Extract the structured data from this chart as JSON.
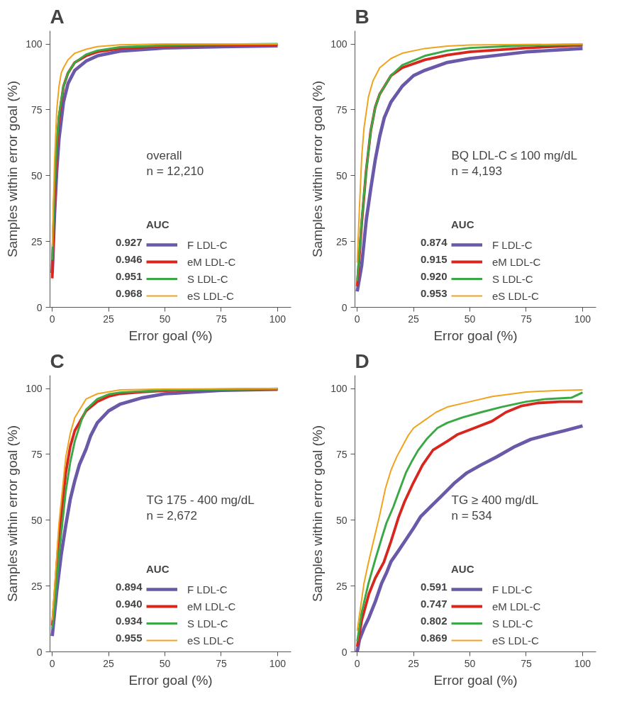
{
  "chart_data": [
    {
      "type": "line",
      "title": "A",
      "xlabel": "Error goal (%)",
      "ylabel": "Samples within error goal (%)",
      "xlim": [
        -1,
        106
      ],
      "ylim": [
        0,
        105
      ],
      "xticks": [
        0,
        25,
        50,
        75,
        100
      ],
      "yticks": [
        0,
        25,
        50,
        75,
        100
      ],
      "grid": false,
      "legend": "bottom right",
      "legend_title": "AUC",
      "annotations": [
        "overall",
        "n = 12,210",
        "0.927",
        "0.946",
        "0.951",
        "0.968"
      ],
      "series": [
        {
          "name": "F LDL-C",
          "color": "#6a58a8",
          "x": [
            0,
            1,
            2,
            3,
            5,
            7,
            10,
            15,
            20,
            30,
            50,
            75,
            100
          ],
          "values": [
            13,
            35,
            52,
            64,
            78,
            85,
            90,
            93.5,
            95.5,
            97.3,
            98.5,
            99,
            99.3
          ]
        },
        {
          "name": "eM LDL-C",
          "color": "#d7261e",
          "x": [
            0,
            1,
            2,
            3,
            5,
            7,
            10,
            15,
            20,
            30,
            50,
            75,
            100
          ],
          "values": [
            11,
            42,
            60,
            72,
            84,
            89,
            93,
            95.5,
            97,
            98.3,
            99.2,
            99.5,
            99.7
          ]
        },
        {
          "name": "S LDL-C",
          "color": "#3aa845",
          "x": [
            0,
            1,
            2,
            3,
            5,
            7,
            10,
            15,
            20,
            30,
            50,
            75,
            100
          ],
          "values": [
            18,
            45,
            62,
            73,
            84,
            89,
            93,
            96,
            97.5,
            98.8,
            99.5,
            99.8,
            100
          ]
        },
        {
          "name": "eS LDL-C",
          "color": "#f0a31c",
          "x": [
            0,
            1,
            2,
            3,
            4,
            5,
            7,
            10,
            15,
            20,
            30,
            50,
            100
          ],
          "values": [
            23,
            55,
            75,
            84,
            89,
            91,
            94,
            96.5,
            98,
            99,
            99.7,
            100,
            100
          ]
        }
      ]
    },
    {
      "type": "line",
      "title": "B",
      "xlabel": "Error goal (%)",
      "ylabel": "Samples within error goal (%)",
      "xlim": [
        -1,
        106
      ],
      "ylim": [
        0,
        105
      ],
      "xticks": [
        0,
        25,
        50,
        75,
        100
      ],
      "yticks": [
        0,
        25,
        50,
        75,
        100
      ],
      "grid": false,
      "legend": "bottom right",
      "legend_title": "AUC",
      "annotations": [
        "BQ LDL-C ≤ 100 mg/dL",
        "n = 4,193",
        "0.874",
        "0.915",
        "0.920",
        "0.953"
      ],
      "series": [
        {
          "name": "F LDL-C",
          "color": "#6a58a8",
          "x": [
            0,
            2,
            4,
            6,
            8,
            10,
            12,
            15,
            20,
            25,
            30,
            40,
            50,
            75,
            100
          ],
          "values": [
            6,
            16,
            33,
            45,
            56,
            65,
            72,
            78,
            84,
            88,
            90,
            93,
            94.5,
            97,
            98.3
          ]
        },
        {
          "name": "eM LDL-C",
          "color": "#d7261e",
          "x": [
            0,
            2,
            4,
            6,
            8,
            10,
            15,
            20,
            30,
            40,
            50,
            75,
            100
          ],
          "values": [
            8,
            32,
            52,
            67,
            76,
            81,
            88,
            91,
            94,
            95.8,
            97,
            98.5,
            99.5
          ]
        },
        {
          "name": "S LDL-C",
          "color": "#3aa845",
          "x": [
            0,
            2,
            4,
            6,
            8,
            10,
            15,
            20,
            30,
            40,
            50,
            75,
            100
          ],
          "values": [
            10,
            33,
            52,
            67,
            76,
            81,
            88,
            92,
            95.5,
            97.5,
            98.5,
            99.5,
            99.8
          ]
        },
        {
          "name": "eS LDL-C",
          "color": "#f0a31c",
          "x": [
            0,
            1,
            2,
            3,
            5,
            7,
            10,
            15,
            20,
            30,
            40,
            50,
            100
          ],
          "values": [
            17,
            38,
            57,
            68,
            80,
            86,
            91,
            94.5,
            96.5,
            98.3,
            99.2,
            99.6,
            100
          ]
        }
      ]
    },
    {
      "type": "line",
      "title": "C",
      "xlabel": "Error goal (%)",
      "ylabel": "Samples within error goal (%)",
      "xlim": [
        -1,
        106
      ],
      "ylim": [
        0,
        105
      ],
      "xticks": [
        0,
        25,
        50,
        75,
        100
      ],
      "yticks": [
        0,
        25,
        50,
        75,
        100
      ],
      "grid": false,
      "legend": "bottom right",
      "legend_title": "AUC",
      "annotations": [
        "TG 175 - 400 mg/dL",
        "n = 2,672",
        "0.894",
        "0.940",
        "0.934",
        "0.955"
      ],
      "series": [
        {
          "name": "F LDL-C",
          "color": "#6a58a8",
          "x": [
            0,
            2,
            4,
            6,
            8,
            10,
            12,
            15,
            17,
            20,
            25,
            30,
            40,
            50,
            75,
            100
          ],
          "values": [
            6,
            23,
            37,
            48,
            58,
            65,
            71,
            77,
            82,
            87,
            91.5,
            94,
            96.5,
            98,
            99.3,
            99.7
          ]
        },
        {
          "name": "eM LDL-C",
          "color": "#d7261e",
          "x": [
            0,
            1,
            3,
            6,
            8,
            10,
            15,
            20,
            25,
            30,
            40,
            50,
            75,
            100
          ],
          "values": [
            10,
            20,
            44,
            68,
            78,
            84,
            91.5,
            95,
            97,
            98,
            98.7,
            99.2,
            99.6,
            99.8
          ]
        },
        {
          "name": "S LDL-C",
          "color": "#3aa845",
          "x": [
            0,
            1,
            3,
            6,
            8,
            10,
            13,
            15,
            20,
            25,
            30,
            50,
            100
          ],
          "values": [
            9,
            17,
            37,
            61,
            72,
            80,
            88,
            92,
            96,
            97.8,
            98.5,
            99.4,
            99.8
          ]
        },
        {
          "name": "eS LDL-C",
          "color": "#f0a31c",
          "x": [
            0,
            1,
            3,
            6,
            8,
            10,
            15,
            20,
            30,
            50,
            100
          ],
          "values": [
            12,
            24,
            49,
            74,
            83,
            89,
            96,
            98,
            99.5,
            99.8,
            100
          ]
        }
      ]
    },
    {
      "type": "line",
      "title": "D",
      "xlabel": "Error goal (%)",
      "ylabel": "Samples within error goal (%)",
      "xlim": [
        -1,
        106
      ],
      "ylim": [
        0,
        105
      ],
      "xticks": [
        0,
        25,
        50,
        75,
        100
      ],
      "yticks": [
        0,
        25,
        50,
        75,
        100
      ],
      "grid": false,
      "legend": "bottom right",
      "legend_title": "AUC",
      "annotations": [
        "TG ≥ 400 mg/dL",
        "n = 534",
        "0.591",
        "0.747",
        "0.802",
        "0.869"
      ],
      "series": [
        {
          "name": "F LDL-C",
          "color": "#6a58a8",
          "x": [
            0,
            1,
            3,
            5.2,
            8,
            10.8,
            13,
            15,
            18,
            21.6,
            25,
            28.1,
            33,
            37.9,
            43,
            48.7,
            55,
            61.8,
            70,
            77,
            85,
            92,
            100
          ],
          "values": [
            0,
            4.6,
            9,
            13,
            19,
            26,
            30,
            34.3,
            38,
            42.6,
            47,
            51.3,
            55.5,
            59.6,
            64,
            68,
            71,
            74,
            78,
            80.7,
            82.5,
            84,
            85.8
          ]
        },
        {
          "name": "eM LDL-C",
          "color": "#d7261e",
          "x": [
            0,
            2,
            5.2,
            8,
            11.8,
            15,
            18.3,
            21,
            24.8,
            29,
            33.6,
            40,
            44.4,
            52,
            59.8,
            66,
            72.9,
            80,
            90,
            100
          ],
          "values": [
            2,
            12,
            22,
            28,
            34,
            42,
            51,
            57,
            64,
            71,
            76.6,
            80,
            82.5,
            85,
            87.6,
            91,
            93.4,
            94.5,
            95,
            95
          ]
        },
        {
          "name": "S LDL-C",
          "color": "#3aa845",
          "x": [
            0,
            2,
            5,
            8,
            10.8,
            13,
            16,
            19,
            21.6,
            24,
            27,
            31,
            35.6,
            40,
            46.7,
            55,
            64,
            75,
            83.7,
            95,
            100
          ],
          "values": [
            4,
            15,
            26,
            35,
            43,
            49,
            55,
            62,
            68,
            72,
            76.5,
            81,
            85,
            87,
            89,
            91,
            93,
            95,
            96,
            96.5,
            98.5
          ]
        },
        {
          "name": "eS LDL-C",
          "color": "#f0a31c",
          "x": [
            0,
            3,
            5,
            7.5,
            10,
            12.5,
            15,
            17.5,
            20,
            22.5,
            25,
            30,
            35,
            40,
            50,
            60,
            75,
            90,
            100
          ],
          "values": [
            8,
            26,
            34,
            43,
            52,
            62,
            69,
            74,
            78,
            82,
            85,
            88,
            91,
            93,
            95,
            97,
            98.7,
            99.3,
            99.5
          ]
        }
      ]
    }
  ]
}
